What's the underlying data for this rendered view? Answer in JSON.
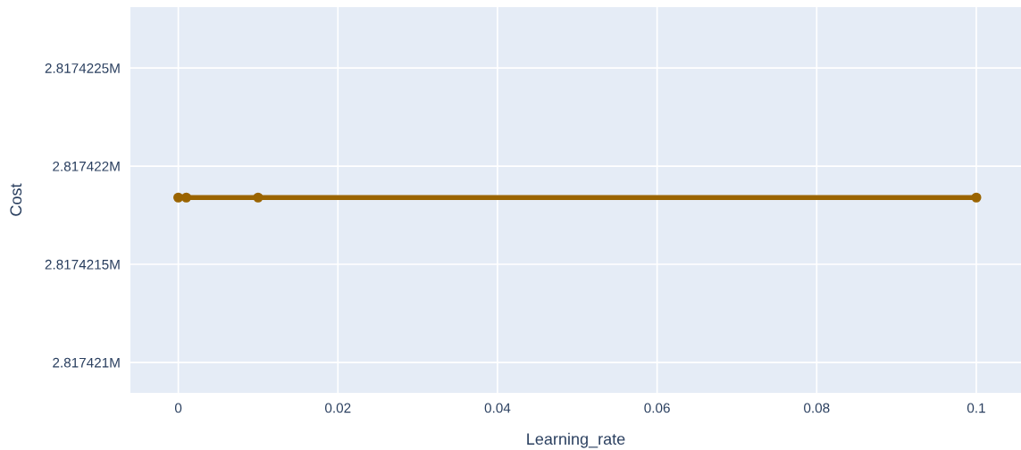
{
  "chart_data": {
    "type": "line",
    "xlabel": "Learning_rate",
    "ylabel": "Cost",
    "x": [
      0,
      0.001,
      0.01,
      0.1
    ],
    "series": [
      {
        "color": "#9a6400",
        "values": [
          2817421.84,
          2817421.84,
          2817421.84,
          2817421.84
        ]
      }
    ],
    "xlim": [
      -0.006,
      0.1056
    ],
    "xticks": [
      0,
      0.02,
      0.04,
      0.06,
      0.08,
      0.1
    ],
    "ylim": [
      2817420.845,
      2817422.81
    ],
    "yticks": [
      {
        "value": 2817421,
        "label": "2.817421M"
      },
      {
        "value": 2817421.5,
        "label": "2.8174215M"
      },
      {
        "value": 2817422,
        "label": "2.817422M"
      },
      {
        "value": 2817422.5,
        "label": "2.8174225M"
      }
    ],
    "grid": true,
    "marker": "circle",
    "line_style": "solid"
  }
}
